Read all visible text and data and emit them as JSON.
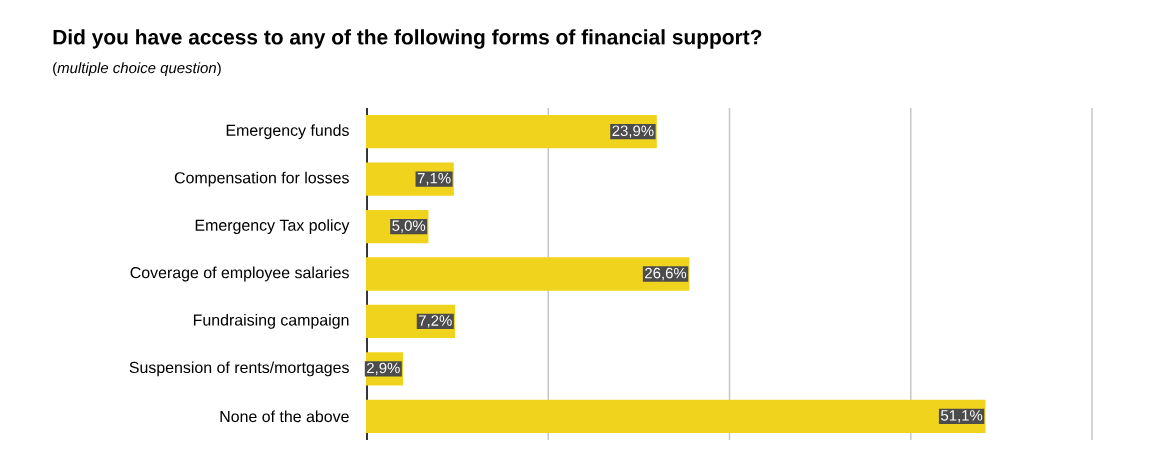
{
  "chart_data": {
    "type": "bar",
    "orientation": "horizontal",
    "title": "Did you have access to any of the following forms of financial support?",
    "subtitle": "(*multiple choice question*)",
    "categories": [
      "Emergency funds",
      "Compensation for losses",
      "Emergency Tax policy",
      "Coverage of employee salaries",
      "Fundraising campaign",
      "Suspension of rents/mortgages",
      "None of the above"
    ],
    "values": [
      23.9,
      7.1,
      5.0,
      26.6,
      7.2,
      2.9,
      51.1
    ],
    "value_labels": [
      "23,9%",
      "7,1%",
      "5,0%",
      "26,6%",
      "7,2%",
      "2,9%",
      "51,1%"
    ],
    "color": "#efd31c",
    "xlim": [
      0,
      60
    ],
    "xticks": [
      {
        "value": 0,
        "label": null
      },
      {
        "value": 15,
        "label": null
      },
      {
        "value": 30,
        "label": null
      },
      {
        "value": 45,
        "label": null
      },
      {
        "value": 60,
        "label": null
      }
    ],
    "grid": "x",
    "tick_labels": "y"
  }
}
